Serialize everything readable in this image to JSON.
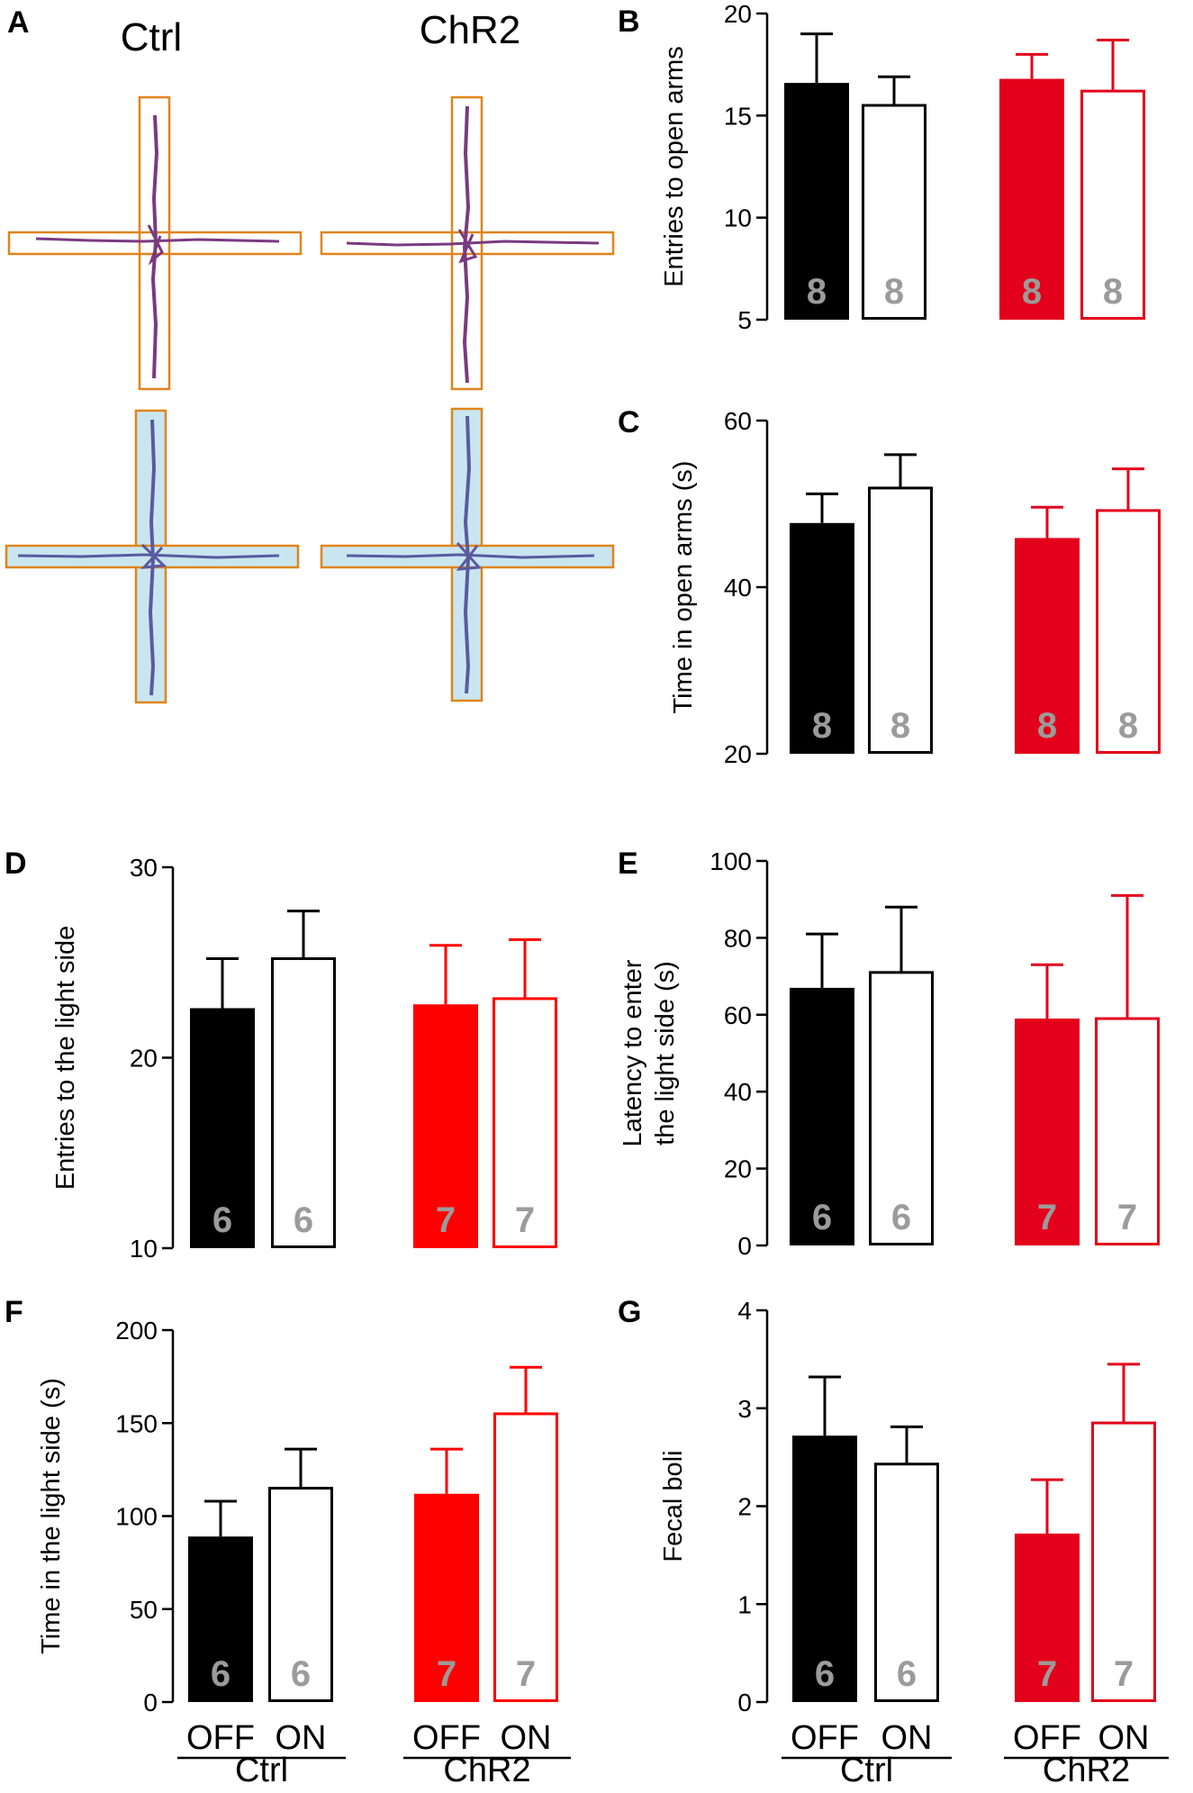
{
  "colors": {
    "black": "#000000",
    "red": "#e3001b",
    "bright_red": "#ff0000",
    "n_label": "#9b9b9b",
    "maze_box": "#e0841a",
    "maze_fill": "#c9e6f0",
    "track_top": "#7a3a80",
    "track_bottom": "#5a5aa0"
  },
  "panel_a": {
    "letter": "A",
    "col_labels": [
      "Ctrl",
      "ChR2"
    ]
  },
  "conditions": [
    "OFF",
    "ON"
  ],
  "groups": [
    "Ctrl",
    "ChR2"
  ],
  "chart_data": [
    {
      "id": "B",
      "letter": "B",
      "type": "bar",
      "ylabel": [
        "Entries to open arms"
      ],
      "ylim": [
        5,
        20
      ],
      "yticks": [
        5,
        10,
        15,
        20
      ],
      "categories": [
        "Ctrl OFF",
        "Ctrl ON",
        "ChR2 OFF",
        "ChR2 ON"
      ],
      "values": [
        16.6,
        15.5,
        16.8,
        16.2
      ],
      "errors": [
        2.4,
        1.4,
        1.2,
        2.5
      ],
      "n": [
        "8",
        "8",
        "8",
        "8"
      ],
      "styles": [
        "black",
        "hollow-black",
        "red",
        "hollow-red"
      ],
      "show_group_labels": false
    },
    {
      "id": "C",
      "letter": "C",
      "type": "bar",
      "ylabel": [
        "Time in open arms (s)"
      ],
      "ylim": [
        20,
        60
      ],
      "yticks": [
        20,
        40,
        60
      ],
      "categories": [
        "Ctrl OFF",
        "Ctrl ON",
        "ChR2 OFF",
        "ChR2 ON"
      ],
      "values": [
        47.7,
        51.9,
        45.9,
        49.2
      ],
      "errors": [
        3.5,
        4.0,
        3.7,
        5.0
      ],
      "n": [
        "8",
        "8",
        "8",
        "8"
      ],
      "styles": [
        "black",
        "hollow-black",
        "red",
        "hollow-red"
      ],
      "show_group_labels": false
    },
    {
      "id": "D",
      "letter": "D",
      "type": "bar",
      "ylabel": [
        "Entries to the light side"
      ],
      "ylim": [
        10,
        30
      ],
      "yticks": [
        10,
        20,
        30
      ],
      "categories": [
        "Ctrl OFF",
        "Ctrl ON",
        "ChR2 OFF",
        "ChR2 ON"
      ],
      "values": [
        22.6,
        25.2,
        22.8,
        23.1
      ],
      "errors": [
        2.6,
        2.5,
        3.1,
        3.1
      ],
      "n": [
        "6",
        "6",
        "7",
        "7"
      ],
      "styles": [
        "black",
        "hollow-black",
        "bright-red",
        "hollow-bright-red"
      ],
      "show_group_labels": false
    },
    {
      "id": "E",
      "letter": "E",
      "type": "bar",
      "ylabel": [
        "Latency to enter",
        "the light side (s)"
      ],
      "ylim": [
        0,
        100
      ],
      "yticks": [
        0,
        20,
        40,
        60,
        80,
        100
      ],
      "categories": [
        "Ctrl OFF",
        "Ctrl ON",
        "ChR2 OFF",
        "ChR2 ON"
      ],
      "values": [
        67,
        71,
        59,
        59
      ],
      "errors": [
        14,
        17,
        14,
        32
      ],
      "n": [
        "6",
        "6",
        "7",
        "7"
      ],
      "styles": [
        "black",
        "hollow-black",
        "red",
        "hollow-red"
      ],
      "show_group_labels": false
    },
    {
      "id": "F",
      "letter": "F",
      "type": "bar",
      "ylabel": [
        "Time in the light side (s)"
      ],
      "ylim": [
        0,
        200
      ],
      "yticks": [
        0,
        50,
        100,
        150,
        200
      ],
      "categories": [
        "Ctrl OFF",
        "Ctrl ON",
        "ChR2 OFF",
        "ChR2 ON"
      ],
      "values": [
        89,
        115,
        112,
        155
      ],
      "errors": [
        19,
        21,
        24,
        25
      ],
      "n": [
        "6",
        "6",
        "7",
        "7"
      ],
      "styles": [
        "black",
        "hollow-black",
        "bright-red",
        "hollow-bright-red"
      ],
      "show_group_labels": true
    },
    {
      "id": "G",
      "letter": "G",
      "type": "bar",
      "ylabel": [
        "Fecal boli"
      ],
      "ylim": [
        0,
        4
      ],
      "yticks": [
        0,
        1,
        2,
        3,
        4
      ],
      "categories": [
        "Ctrl OFF",
        "Ctrl ON",
        "ChR2 OFF",
        "ChR2 ON"
      ],
      "values": [
        2.72,
        2.43,
        1.72,
        2.85
      ],
      "errors": [
        0.6,
        0.38,
        0.55,
        0.6
      ],
      "n": [
        "6",
        "6",
        "7",
        "7"
      ],
      "styles": [
        "black",
        "hollow-black",
        "red",
        "hollow-red"
      ],
      "show_group_labels": true
    }
  ]
}
